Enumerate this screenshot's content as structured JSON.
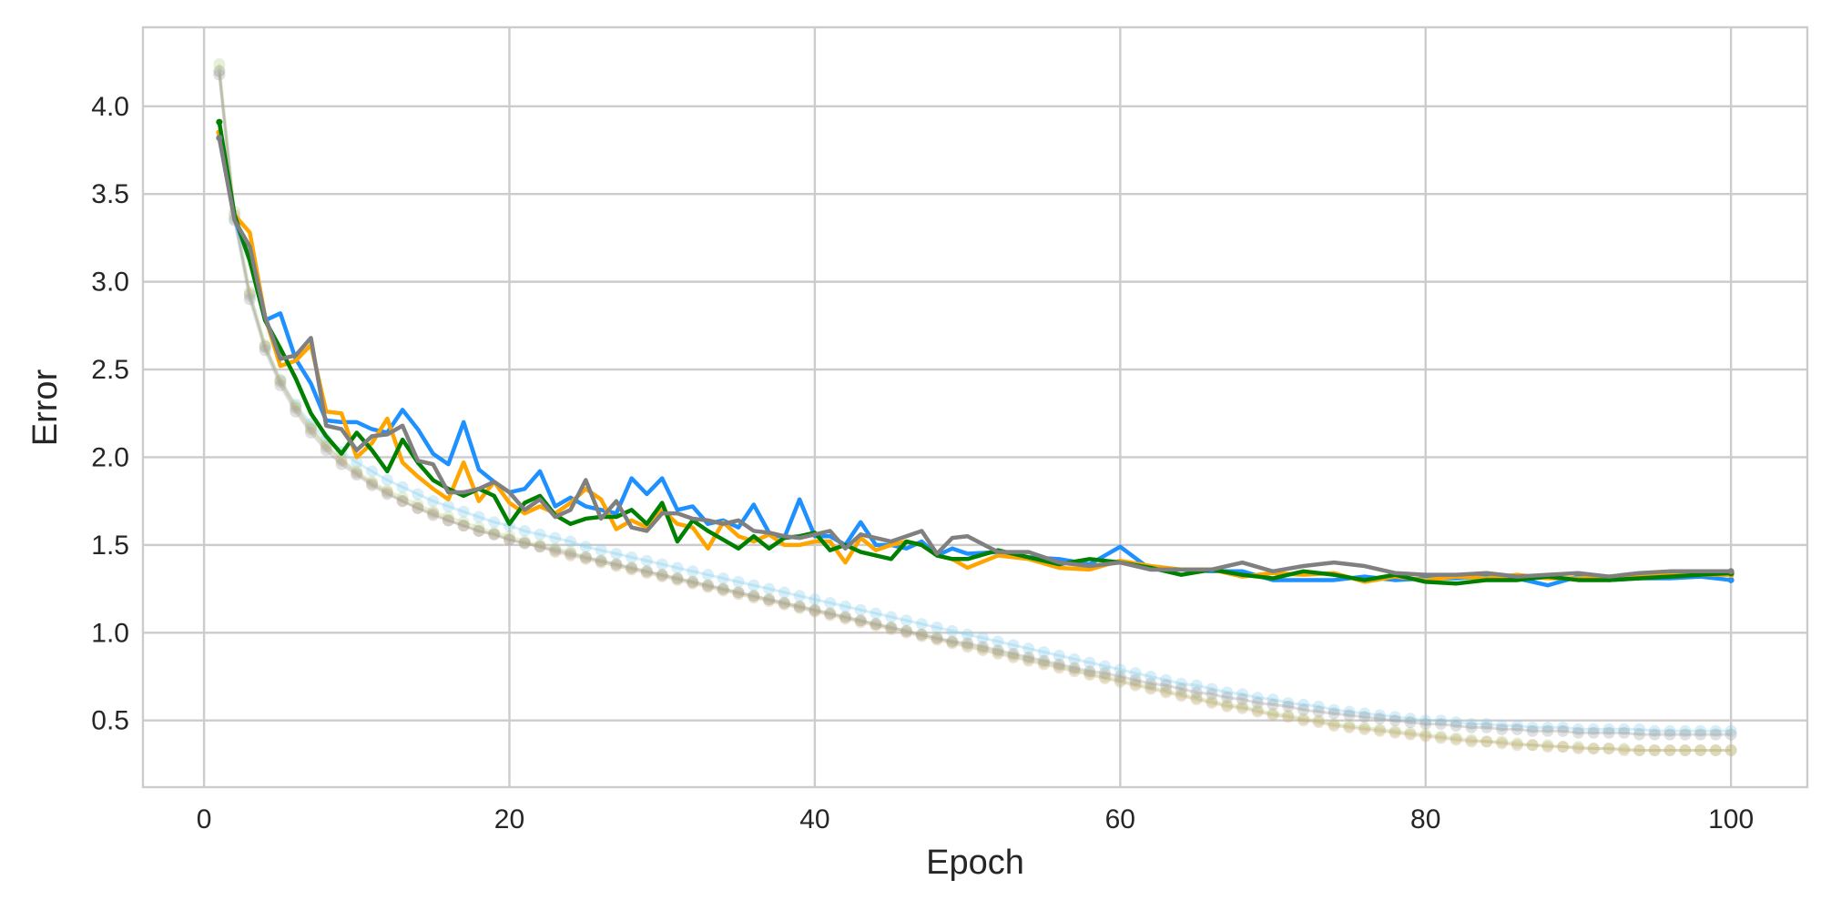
{
  "chart_data": {
    "type": "line",
    "title": "",
    "xlabel": "Epoch",
    "ylabel": "Error",
    "xlim": [
      -4,
      105
    ],
    "ylim": [
      0.12,
      4.45
    ],
    "xticks": [
      0,
      20,
      40,
      60,
      80,
      100
    ],
    "yticks": [
      0.5,
      1.0,
      1.5,
      2.0,
      2.5,
      3.0,
      3.5,
      4.0
    ],
    "ytick_labels": [
      "0.5",
      "1.0",
      "1.5",
      "2.0",
      "2.5",
      "3.0",
      "3.5",
      "4.0"
    ],
    "grid": true,
    "legend": "none",
    "train_x_start": 1,
    "train_x_step": 1,
    "train_series": [
      {
        "color": "#87CEEB",
        "values": [
          4.2,
          3.36,
          2.92,
          2.63,
          2.44,
          2.3,
          2.19,
          2.1,
          2.03,
          1.97,
          1.92,
          1.87,
          1.83,
          1.79,
          1.75,
          1.72,
          1.69,
          1.66,
          1.63,
          1.61,
          1.58,
          1.56,
          1.54,
          1.52,
          1.49,
          1.47,
          1.45,
          1.43,
          1.41,
          1.39,
          1.37,
          1.35,
          1.33,
          1.31,
          1.29,
          1.27,
          1.25,
          1.23,
          1.21,
          1.19,
          1.17,
          1.15,
          1.13,
          1.11,
          1.09,
          1.07,
          1.05,
          1.03,
          1.01,
          0.99,
          0.97,
          0.95,
          0.93,
          0.91,
          0.89,
          0.87,
          0.85,
          0.83,
          0.81,
          0.79,
          0.77,
          0.75,
          0.73,
          0.71,
          0.7,
          0.68,
          0.66,
          0.65,
          0.63,
          0.62,
          0.6,
          0.59,
          0.58,
          0.56,
          0.55,
          0.54,
          0.53,
          0.52,
          0.51,
          0.5,
          0.5,
          0.49,
          0.48,
          0.48,
          0.47,
          0.47,
          0.46,
          0.46,
          0.46,
          0.45,
          0.45,
          0.45,
          0.45,
          0.45,
          0.44,
          0.44,
          0.44,
          0.44,
          0.44,
          0.44
        ]
      },
      {
        "color": "#B5D48C",
        "values": [
          4.24,
          3.4,
          2.94,
          2.64,
          2.44,
          2.29,
          2.17,
          2.07,
          1.99,
          1.92,
          1.86,
          1.81,
          1.77,
          1.73,
          1.69,
          1.66,
          1.63,
          1.6,
          1.57,
          1.55,
          1.52,
          1.5,
          1.48,
          1.46,
          1.43,
          1.41,
          1.39,
          1.37,
          1.35,
          1.33,
          1.31,
          1.29,
          1.27,
          1.25,
          1.23,
          1.21,
          1.19,
          1.17,
          1.15,
          1.13,
          1.11,
          1.09,
          1.07,
          1.05,
          1.03,
          1.01,
          0.99,
          0.97,
          0.95,
          0.93,
          0.91,
          0.89,
          0.87,
          0.85,
          0.83,
          0.81,
          0.79,
          0.77,
          0.75,
          0.73,
          0.71,
          0.69,
          0.67,
          0.65,
          0.63,
          0.61,
          0.59,
          0.58,
          0.56,
          0.54,
          0.53,
          0.51,
          0.5,
          0.48,
          0.47,
          0.46,
          0.45,
          0.44,
          0.43,
          0.42,
          0.41,
          0.4,
          0.39,
          0.38,
          0.38,
          0.37,
          0.36,
          0.36,
          0.35,
          0.35,
          0.34,
          0.34,
          0.34,
          0.33,
          0.33,
          0.33,
          0.33,
          0.33,
          0.33,
          0.33
        ]
      },
      {
        "color": "#C8A878",
        "values": [
          4.2,
          3.38,
          2.93,
          2.63,
          2.43,
          2.28,
          2.16,
          2.06,
          1.98,
          1.91,
          1.85,
          1.8,
          1.75,
          1.71,
          1.68,
          1.64,
          1.61,
          1.58,
          1.56,
          1.53,
          1.51,
          1.49,
          1.46,
          1.44,
          1.42,
          1.4,
          1.38,
          1.36,
          1.34,
          1.32,
          1.3,
          1.28,
          1.26,
          1.24,
          1.22,
          1.2,
          1.18,
          1.16,
          1.14,
          1.12,
          1.1,
          1.08,
          1.06,
          1.04,
          1.02,
          1.0,
          0.98,
          0.96,
          0.94,
          0.92,
          0.9,
          0.88,
          0.86,
          0.84,
          0.82,
          0.8,
          0.78,
          0.76,
          0.74,
          0.72,
          0.7,
          0.68,
          0.66,
          0.64,
          0.62,
          0.6,
          0.58,
          0.57,
          0.55,
          0.53,
          0.52,
          0.5,
          0.49,
          0.47,
          0.46,
          0.45,
          0.44,
          0.43,
          0.42,
          0.41,
          0.4,
          0.39,
          0.38,
          0.38,
          0.37,
          0.36,
          0.36,
          0.35,
          0.35,
          0.34,
          0.34,
          0.34,
          0.33,
          0.33,
          0.33,
          0.33,
          0.33,
          0.33,
          0.33,
          0.33
        ]
      },
      {
        "color": "#9E9E9E",
        "values": [
          4.18,
          3.35,
          2.9,
          2.61,
          2.41,
          2.26,
          2.14,
          2.04,
          1.96,
          1.9,
          1.84,
          1.79,
          1.75,
          1.71,
          1.67,
          1.64,
          1.61,
          1.58,
          1.56,
          1.53,
          1.51,
          1.49,
          1.47,
          1.45,
          1.43,
          1.41,
          1.39,
          1.37,
          1.35,
          1.33,
          1.31,
          1.29,
          1.27,
          1.25,
          1.23,
          1.21,
          1.19,
          1.17,
          1.15,
          1.13,
          1.11,
          1.09,
          1.07,
          1.05,
          1.03,
          1.01,
          0.99,
          0.97,
          0.95,
          0.94,
          0.92,
          0.9,
          0.88,
          0.86,
          0.84,
          0.82,
          0.8,
          0.78,
          0.77,
          0.75,
          0.73,
          0.71,
          0.7,
          0.68,
          0.66,
          0.65,
          0.63,
          0.62,
          0.6,
          0.59,
          0.58,
          0.56,
          0.55,
          0.54,
          0.53,
          0.52,
          0.51,
          0.5,
          0.49,
          0.48,
          0.48,
          0.47,
          0.46,
          0.46,
          0.45,
          0.45,
          0.44,
          0.44,
          0.44,
          0.43,
          0.43,
          0.43,
          0.43,
          0.42,
          0.42,
          0.42,
          0.42,
          0.42,
          0.42,
          0.42
        ]
      }
    ],
    "val_series": [
      {
        "color": "#1E90FF",
        "x": [
          1,
          2,
          3,
          4,
          5,
          6,
          7,
          8,
          9,
          10,
          11,
          12,
          13,
          14,
          15,
          16,
          17,
          18,
          19,
          20,
          21,
          22,
          23,
          24,
          25,
          26,
          27,
          28,
          29,
          30,
          31,
          32,
          33,
          34,
          35,
          36,
          37,
          38,
          39,
          40,
          41,
          42,
          43,
          44,
          45,
          46,
          47,
          48,
          49,
          50,
          52,
          54,
          56,
          58,
          60,
          62,
          64,
          66,
          68,
          70,
          72,
          74,
          76,
          78,
          80,
          82,
          84,
          86,
          88,
          90,
          92,
          94,
          96,
          98,
          100
        ],
        "values": [
          3.82,
          3.36,
          3.12,
          2.78,
          2.82,
          2.56,
          2.42,
          2.21,
          2.2,
          2.2,
          2.16,
          2.14,
          2.27,
          2.16,
          2.02,
          1.96,
          2.2,
          1.93,
          1.86,
          1.8,
          1.82,
          1.92,
          1.72,
          1.77,
          1.72,
          1.7,
          1.68,
          1.88,
          1.79,
          1.88,
          1.7,
          1.72,
          1.62,
          1.64,
          1.6,
          1.73,
          1.57,
          1.54,
          1.76,
          1.55,
          1.55,
          1.5,
          1.63,
          1.5,
          1.5,
          1.48,
          1.52,
          1.44,
          1.48,
          1.45,
          1.46,
          1.43,
          1.42,
          1.39,
          1.49,
          1.36,
          1.36,
          1.35,
          1.35,
          1.3,
          1.3,
          1.3,
          1.32,
          1.3,
          1.31,
          1.31,
          1.32,
          1.31,
          1.27,
          1.32,
          1.3,
          1.31,
          1.31,
          1.32,
          1.3
        ]
      },
      {
        "color": "#FFA500",
        "x": [
          1,
          2,
          3,
          4,
          5,
          6,
          7,
          8,
          9,
          10,
          11,
          12,
          13,
          14,
          15,
          16,
          17,
          18,
          19,
          20,
          21,
          22,
          23,
          24,
          25,
          26,
          27,
          28,
          29,
          30,
          31,
          32,
          33,
          34,
          35,
          36,
          37,
          38,
          39,
          40,
          41,
          42,
          43,
          44,
          45,
          46,
          47,
          48,
          49,
          50,
          52,
          54,
          56,
          58,
          60,
          62,
          64,
          66,
          68,
          70,
          72,
          74,
          76,
          78,
          80,
          82,
          84,
          86,
          88,
          90,
          92,
          94,
          96,
          98,
          100
        ],
        "values": [
          3.85,
          3.38,
          3.28,
          2.8,
          2.52,
          2.55,
          2.64,
          2.26,
          2.25,
          2.0,
          2.08,
          2.22,
          1.97,
          1.89,
          1.82,
          1.76,
          1.97,
          1.75,
          1.86,
          1.74,
          1.68,
          1.72,
          1.68,
          1.74,
          1.82,
          1.76,
          1.59,
          1.64,
          1.6,
          1.7,
          1.62,
          1.6,
          1.48,
          1.63,
          1.55,
          1.52,
          1.56,
          1.5,
          1.5,
          1.52,
          1.52,
          1.4,
          1.54,
          1.47,
          1.5,
          1.52,
          1.5,
          1.44,
          1.42,
          1.37,
          1.44,
          1.42,
          1.37,
          1.36,
          1.41,
          1.38,
          1.36,
          1.36,
          1.32,
          1.34,
          1.33,
          1.34,
          1.29,
          1.32,
          1.3,
          1.32,
          1.31,
          1.33,
          1.31,
          1.31,
          1.32,
          1.32,
          1.33,
          1.33,
          1.33
        ]
      },
      {
        "color": "#008000",
        "x": [
          1,
          2,
          3,
          4,
          5,
          6,
          7,
          8,
          9,
          10,
          11,
          12,
          13,
          14,
          15,
          16,
          17,
          18,
          19,
          20,
          21,
          22,
          23,
          24,
          25,
          26,
          27,
          28,
          29,
          30,
          31,
          32,
          33,
          34,
          35,
          36,
          37,
          38,
          39,
          40,
          41,
          42,
          43,
          44,
          45,
          46,
          47,
          48,
          49,
          50,
          52,
          54,
          56,
          58,
          60,
          62,
          64,
          66,
          68,
          70,
          72,
          74,
          76,
          78,
          80,
          82,
          84,
          86,
          88,
          90,
          92,
          94,
          96,
          98,
          100
        ],
        "values": [
          3.91,
          3.38,
          3.12,
          2.78,
          2.62,
          2.45,
          2.25,
          2.12,
          2.02,
          2.14,
          2.04,
          1.92,
          2.1,
          1.97,
          1.87,
          1.82,
          1.78,
          1.82,
          1.78,
          1.62,
          1.74,
          1.78,
          1.67,
          1.62,
          1.65,
          1.66,
          1.66,
          1.7,
          1.62,
          1.74,
          1.52,
          1.64,
          1.58,
          1.53,
          1.48,
          1.55,
          1.48,
          1.54,
          1.55,
          1.57,
          1.47,
          1.5,
          1.46,
          1.44,
          1.42,
          1.52,
          1.5,
          1.44,
          1.42,
          1.42,
          1.47,
          1.43,
          1.39,
          1.42,
          1.4,
          1.37,
          1.33,
          1.36,
          1.33,
          1.31,
          1.35,
          1.33,
          1.3,
          1.33,
          1.29,
          1.28,
          1.3,
          1.3,
          1.32,
          1.3,
          1.3,
          1.31,
          1.32,
          1.33,
          1.34
        ]
      },
      {
        "color": "#808080",
        "x": [
          1,
          2,
          3,
          4,
          5,
          6,
          7,
          8,
          9,
          10,
          11,
          12,
          13,
          14,
          15,
          16,
          17,
          18,
          19,
          20,
          21,
          22,
          23,
          24,
          25,
          26,
          27,
          28,
          29,
          30,
          31,
          32,
          33,
          34,
          35,
          36,
          37,
          38,
          39,
          40,
          41,
          42,
          43,
          44,
          45,
          46,
          47,
          48,
          49,
          50,
          52,
          54,
          56,
          58,
          60,
          62,
          64,
          66,
          68,
          70,
          72,
          74,
          76,
          78,
          80,
          82,
          84,
          86,
          88,
          90,
          92,
          94,
          96,
          98,
          100
        ],
        "values": [
          3.82,
          3.35,
          3.2,
          2.8,
          2.56,
          2.58,
          2.68,
          2.18,
          2.16,
          2.04,
          2.12,
          2.13,
          2.18,
          1.98,
          1.96,
          1.8,
          1.8,
          1.82,
          1.86,
          1.8,
          1.7,
          1.76,
          1.66,
          1.7,
          1.87,
          1.65,
          1.75,
          1.6,
          1.58,
          1.68,
          1.68,
          1.65,
          1.64,
          1.62,
          1.64,
          1.58,
          1.57,
          1.55,
          1.54,
          1.56,
          1.58,
          1.48,
          1.56,
          1.54,
          1.52,
          1.55,
          1.58,
          1.45,
          1.54,
          1.55,
          1.46,
          1.46,
          1.4,
          1.38,
          1.4,
          1.36,
          1.36,
          1.36,
          1.4,
          1.35,
          1.38,
          1.4,
          1.38,
          1.34,
          1.33,
          1.33,
          1.34,
          1.32,
          1.33,
          1.34,
          1.32,
          1.34,
          1.35,
          1.35,
          1.35
        ]
      }
    ]
  }
}
